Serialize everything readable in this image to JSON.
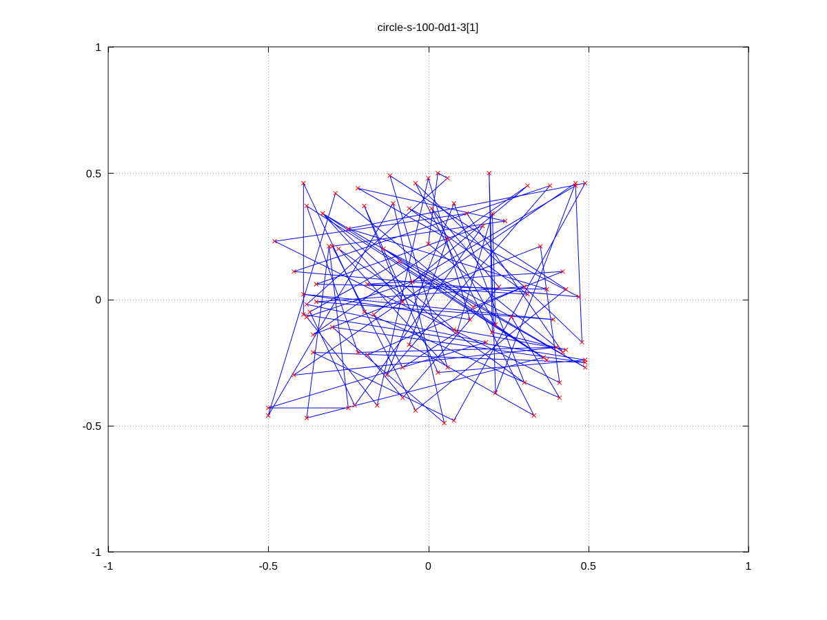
{
  "chart_data": {
    "type": "line",
    "title": "circle-s-100-0d1-3[1]",
    "xlabel": "",
    "ylabel": "",
    "xlim": [
      -1,
      1
    ],
    "ylim": [
      -1,
      1
    ],
    "x_ticks": [
      -1,
      -0.5,
      0,
      0.5,
      1
    ],
    "y_ticks": [
      -1,
      -0.5,
      0,
      0.5,
      1
    ],
    "x_tick_labels": [
      "-1",
      "-0.5",
      "0",
      "0.5",
      "1"
    ],
    "y_tick_labels": [
      "-1",
      "-0.5",
      "0",
      "0.5",
      "1"
    ],
    "grid": true,
    "legend": "none",
    "colors": {
      "path": "#0000ff",
      "points": "#ff0000",
      "grid": "#999999",
      "axes": "#000000"
    },
    "series": [
      {
        "marker": "x",
        "points": [
          [
            -0.39,
            0.46
          ],
          [
            -0.2,
            -0.05
          ],
          [
            0.41,
            -0.39
          ],
          [
            0.26,
            -0.07
          ],
          [
            -0.14,
            0.2
          ],
          [
            0.37,
            -0.24
          ],
          [
            -0.38,
            0.37
          ],
          [
            -0.22,
            -0.21
          ],
          [
            0.4,
            -0.19
          ],
          [
            -0.42,
            -0.3
          ],
          [
            0.46,
            0.46
          ],
          [
            0.21,
            -0.37
          ],
          [
            0.19,
            0.5
          ],
          [
            0.2,
            -0.13
          ],
          [
            0.43,
            -0.2
          ],
          [
            0.08,
            -0.12
          ],
          [
            -0.33,
            0.34
          ],
          [
            0.49,
            -0.27
          ],
          [
            -0.09,
            0.15
          ],
          [
            -0.37,
            -0.05
          ],
          [
            -0.23,
            -0.42
          ],
          [
            0.17,
            0.29
          ],
          [
            -0.35,
            0.06
          ],
          [
            0.37,
            0.04
          ],
          [
            -0.25,
            0.28
          ],
          [
            0.49,
            0.46
          ],
          [
            0.08,
            -0.48
          ],
          [
            -0.36,
            -0.21
          ],
          [
            0.49,
            -0.25
          ],
          [
            -0.3,
            -0.11
          ],
          [
            0.05,
            -0.49
          ],
          [
            -0.11,
            0.38
          ],
          [
            -0.5,
            -0.46
          ],
          [
            -0.29,
            0.42
          ],
          [
            0.14,
            -0.03
          ],
          [
            0.42,
            0.11
          ],
          [
            -0.19,
            0.06
          ],
          [
            0.31,
            0.02
          ],
          [
            -0.06,
            0.36
          ],
          [
            0.47,
            0.01
          ],
          [
            -0.42,
            0.11
          ],
          [
            0.38,
            0.45
          ],
          [
            -0.13,
            -0.3
          ],
          [
            0.08,
            0.38
          ],
          [
            0.3,
            -0.33
          ],
          [
            -0.28,
            0.2
          ],
          [
            0.06,
            -0.27
          ],
          [
            -0.12,
            0.49
          ],
          [
            0.43,
            0.04
          ],
          [
            -0.04,
            -0.44
          ],
          [
            -0.3,
            0.21
          ],
          [
            0.24,
            0.31
          ],
          [
            -0.22,
            0.44
          ],
          [
            0.06,
            0.24
          ],
          [
            -0.06,
            -0.18
          ],
          [
            0.33,
            -0.46
          ],
          [
            -0.04,
            0.46
          ],
          [
            0.48,
            -0.17
          ],
          [
            0.46,
            0.45
          ],
          [
            -0.05,
            0.07
          ],
          [
            -0.38,
            -0.07
          ],
          [
            -0.16,
            -0.42
          ],
          [
            0.0,
            0.48
          ],
          [
            0.13,
            -0.08
          ],
          [
            -0.39,
            0.02
          ],
          [
            0.39,
            -0.08
          ],
          [
            -0.35,
            -0.01
          ],
          [
            0.3,
            0.05
          ],
          [
            -0.19,
            -0.22
          ],
          [
            -0.08,
            -0.39
          ],
          [
            0.22,
            0.05
          ],
          [
            0.01,
            0.36
          ],
          [
            0.21,
            -0.1
          ],
          [
            0.2,
            0.34
          ],
          [
            0.09,
            -0.13
          ],
          [
            -0.08,
            -0.27
          ],
          [
            -0.17,
            -0.06
          ],
          [
            0.31,
            0.45
          ],
          [
            -0.36,
            -0.14
          ],
          [
            0.35,
            0.21
          ],
          [
            0.41,
            -0.33
          ],
          [
            -0.48,
            0.23
          ],
          [
            0.12,
            0.34
          ],
          [
            0.42,
            -0.21
          ],
          [
            0.0,
            0.22
          ],
          [
            0.03,
            0.5
          ],
          [
            0.06,
            0.48
          ],
          [
            -0.38,
            -0.02
          ],
          [
            0.18,
            -0.17
          ],
          [
            -0.5,
            -0.43
          ],
          [
            -0.25,
            -0.43
          ],
          [
            -0.31,
            0.21
          ],
          [
            -0.38,
            -0.47
          ],
          [
            0.36,
            -0.23
          ],
          [
            -0.33,
            0.34
          ],
          [
            -0.08,
            -0.01
          ],
          [
            -0.2,
            0.37
          ],
          [
            0.03,
            -0.29
          ],
          [
            0.49,
            -0.24
          ],
          [
            -0.39,
            -0.06
          ]
        ]
      }
    ]
  }
}
